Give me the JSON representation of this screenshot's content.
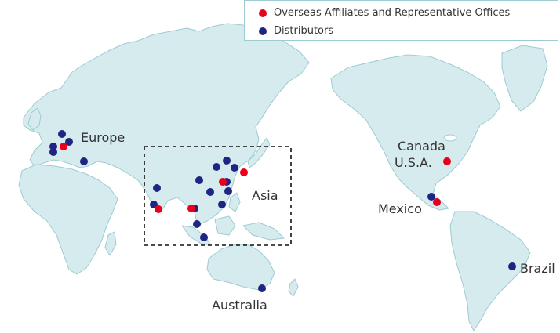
{
  "legend": {
    "affiliates_label": "Overseas Affiliates and Representative Offices",
    "distributors_label": "Distributors"
  },
  "colors": {
    "affiliate": "#e8001c",
    "distributor": "#1f2582",
    "land": "#d6ebee",
    "coast": "#9dcbd2"
  },
  "regions": {
    "europe": "Europe",
    "asia": "Asia",
    "australia": "Australia",
    "canada": "Canada",
    "usa": "U.S.A.",
    "mexico": "Mexico",
    "brazil": "Brazil"
  }
}
